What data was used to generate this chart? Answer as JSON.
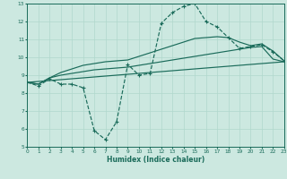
{
  "xlabel": "Humidex (Indice chaleur)",
  "bg_color": "#cce8e0",
  "line_color": "#1a6b5a",
  "grid_color": "#b0d8cc",
  "xlim": [
    0,
    23
  ],
  "ylim": [
    5,
    13
  ],
  "x_ticks": [
    0,
    1,
    2,
    3,
    4,
    5,
    6,
    7,
    8,
    9,
    10,
    11,
    12,
    13,
    14,
    15,
    16,
    17,
    18,
    19,
    20,
    21,
    22,
    23
  ],
  "y_ticks": [
    5,
    6,
    7,
    8,
    9,
    10,
    11,
    12,
    13
  ],
  "line1_x": [
    0,
    1,
    2,
    3,
    4,
    5,
    6,
    7,
    8,
    9,
    10,
    11,
    12,
    13,
    14,
    15,
    16,
    17,
    18,
    19,
    20,
    21,
    22,
    23
  ],
  "line1_y": [
    8.6,
    8.4,
    8.8,
    8.5,
    8.5,
    8.3,
    5.9,
    5.4,
    6.4,
    9.6,
    9.0,
    9.1,
    11.9,
    12.5,
    12.85,
    13.0,
    12.0,
    11.7,
    11.1,
    10.5,
    10.6,
    10.7,
    10.3,
    9.8
  ],
  "line2_x": [
    0,
    1,
    2,
    3,
    4,
    5,
    6,
    7,
    8,
    9,
    10,
    11,
    12,
    13,
    14,
    15,
    16,
    17,
    18,
    19,
    20,
    21,
    22,
    23
  ],
  "line2_y": [
    8.6,
    8.5,
    8.85,
    9.0,
    9.1,
    9.2,
    9.3,
    9.35,
    9.4,
    9.45,
    9.55,
    9.65,
    9.75,
    9.85,
    9.95,
    10.05,
    10.15,
    10.25,
    10.35,
    10.45,
    10.55,
    10.6,
    9.9,
    9.75
  ],
  "line3_x": [
    0,
    1,
    2,
    3,
    4,
    5,
    6,
    7,
    8,
    9,
    10,
    11,
    12,
    13,
    14,
    15,
    16,
    17,
    18,
    19,
    20,
    21,
    22,
    23
  ],
  "line3_y": [
    8.6,
    8.5,
    8.85,
    9.15,
    9.35,
    9.55,
    9.65,
    9.75,
    9.8,
    9.85,
    10.05,
    10.25,
    10.45,
    10.65,
    10.85,
    11.05,
    11.1,
    11.15,
    11.1,
    10.85,
    10.65,
    10.75,
    10.35,
    9.8
  ],
  "line4_x": [
    0,
    23
  ],
  "line4_y": [
    8.6,
    9.75
  ]
}
